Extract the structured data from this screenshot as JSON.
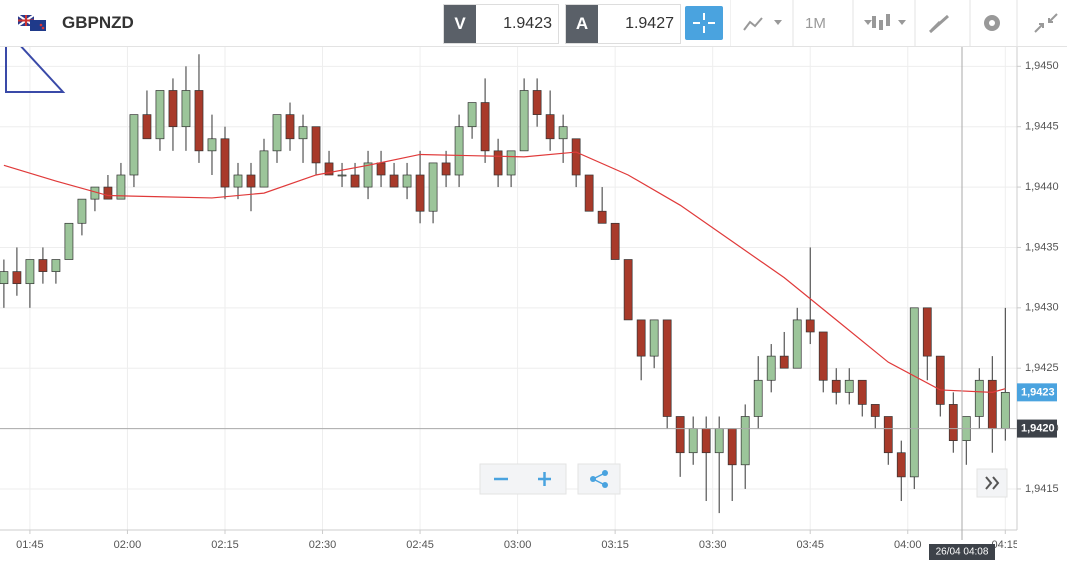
{
  "header": {
    "symbol": "GBPNZD",
    "bid_label": "V",
    "bid": "1.9423",
    "ask_label": "A",
    "ask": "1.9427",
    "timeframe": "1M"
  },
  "chart_data": {
    "type": "candlestick",
    "open": [
      1.9432,
      1.9433,
      1.9432,
      1.9434,
      1.9433,
      1.9434,
      1.9437,
      1.9439,
      1.944,
      1.9439,
      1.9441,
      1.9446,
      1.9444,
      1.9448,
      1.9445,
      1.9448,
      1.9443,
      1.9444,
      1.944,
      1.9441,
      1.944,
      1.9443,
      1.9446,
      1.9444,
      1.9445,
      1.9442,
      1.9441,
      1.9441,
      1.944,
      1.9442,
      1.9441,
      1.944,
      1.9441,
      1.9438,
      1.9442,
      1.9441,
      1.9445,
      1.9447,
      1.9443,
      1.9441,
      1.9443,
      1.9448,
      1.9446,
      1.9444,
      1.9444,
      1.9441,
      1.9438,
      1.9437,
      1.9434,
      1.9429,
      1.9426,
      1.9429,
      1.9421,
      1.9418,
      1.942,
      1.9418,
      1.942,
      1.9417,
      1.9421,
      1.9424,
      1.9426,
      1.9425,
      1.9429,
      1.9428,
      1.9424,
      1.9423,
      1.9424,
      1.9422,
      1.9421,
      1.9418,
      1.9416,
      1.943,
      1.9426,
      1.9422,
      1.9419,
      1.9421,
      1.9424,
      1.942
    ],
    "high": [
      1.9434,
      1.9435,
      1.9434,
      1.9435,
      1.9434,
      1.9437,
      1.9439,
      1.944,
      1.9441,
      1.9442,
      1.9446,
      1.9448,
      1.9448,
      1.9449,
      1.945,
      1.9451,
      1.9446,
      1.9445,
      1.9442,
      1.9442,
      1.9444,
      1.9446,
      1.9447,
      1.9446,
      1.9445,
      1.9443,
      1.9442,
      1.9442,
      1.9443,
      1.9443,
      1.9442,
      1.9442,
      1.9443,
      1.9442,
      1.9443,
      1.9446,
      1.9447,
      1.9449,
      1.9444,
      1.9443,
      1.9449,
      1.9449,
      1.9448,
      1.9446,
      1.9444,
      1.9441,
      1.944,
      1.9437,
      1.9434,
      1.9429,
      1.9429,
      1.9429,
      1.9421,
      1.9421,
      1.9421,
      1.9421,
      1.942,
      1.9422,
      1.9426,
      1.9427,
      1.9428,
      1.943,
      1.9435,
      1.9428,
      1.9425,
      1.9425,
      1.9424,
      1.9422,
      1.9421,
      1.9419,
      1.943,
      1.943,
      1.9426,
      1.9423,
      1.9421,
      1.9425,
      1.9426,
      1.943
    ],
    "low": [
      1.943,
      1.9431,
      1.943,
      1.9432,
      1.9432,
      1.9434,
      1.9436,
      1.9438,
      1.9439,
      1.9439,
      1.944,
      1.9444,
      1.9443,
      1.9443,
      1.9443,
      1.9442,
      1.9441,
      1.9439,
      1.9439,
      1.9438,
      1.944,
      1.9442,
      1.9443,
      1.9442,
      1.9441,
      1.9441,
      1.944,
      1.944,
      1.9439,
      1.944,
      1.944,
      1.9439,
      1.9437,
      1.9437,
      1.944,
      1.944,
      1.9444,
      1.9442,
      1.944,
      1.944,
      1.9443,
      1.9445,
      1.9443,
      1.9442,
      1.944,
      1.9438,
      1.9437,
      1.9434,
      1.9429,
      1.9424,
      1.9425,
      1.942,
      1.9416,
      1.9417,
      1.9414,
      1.9413,
      1.9414,
      1.9415,
      1.942,
      1.9423,
      1.9425,
      1.9425,
      1.9427,
      1.9423,
      1.9422,
      1.9422,
      1.9421,
      1.942,
      1.9417,
      1.9414,
      1.9415,
      1.9424,
      1.9421,
      1.9418,
      1.9417,
      1.942,
      1.9418,
      1.9419
    ],
    "close": [
      1.9433,
      1.9432,
      1.9434,
      1.9433,
      1.9434,
      1.9437,
      1.9439,
      1.944,
      1.9439,
      1.9441,
      1.9446,
      1.9444,
      1.9448,
      1.9445,
      1.9448,
      1.9443,
      1.9444,
      1.944,
      1.9441,
      1.944,
      1.9443,
      1.9446,
      1.9444,
      1.9445,
      1.9442,
      1.9441,
      1.9441,
      1.944,
      1.9442,
      1.9441,
      1.944,
      1.9441,
      1.9438,
      1.9442,
      1.9441,
      1.9445,
      1.9447,
      1.9443,
      1.9441,
      1.9443,
      1.9448,
      1.9446,
      1.9444,
      1.9445,
      1.9441,
      1.9438,
      1.9437,
      1.9434,
      1.9429,
      1.9426,
      1.9429,
      1.9421,
      1.9418,
      1.942,
      1.9418,
      1.942,
      1.9417,
      1.9421,
      1.9424,
      1.9426,
      1.9425,
      1.9429,
      1.9428,
      1.9424,
      1.9423,
      1.9424,
      1.9422,
      1.9421,
      1.9418,
      1.9416,
      1.943,
      1.9426,
      1.9422,
      1.9419,
      1.9421,
      1.9424,
      1.942,
      1.9423
    ],
    "up_color": "#9cc59a",
    "down_color": "#a83a2a",
    "ma": {
      "color": "#e03a3a",
      "x": [
        0,
        4,
        8,
        12,
        16,
        20,
        24,
        28,
        32,
        36,
        40,
        44,
        48,
        52,
        56,
        60,
        64,
        68,
        72,
        76,
        77
      ],
      "values": [
        1.94418,
        1.94405,
        1.94393,
        1.94392,
        1.94391,
        1.94395,
        1.9441,
        1.94418,
        1.94427,
        1.94426,
        1.94425,
        1.94429,
        1.9441,
        1.94385,
        1.94355,
        1.94325,
        1.9429,
        1.94255,
        1.94232,
        1.9423,
        1.94233
      ]
    },
    "xlim": [
      -0.3,
      77.9
    ],
    "xticks": [
      {
        "value": 2,
        "label": "01:45"
      },
      {
        "value": 9.5,
        "label": "02:00"
      },
      {
        "value": 17,
        "label": "02:15"
      },
      {
        "value": 24.5,
        "label": "02:30"
      },
      {
        "value": 32,
        "label": "02:45"
      },
      {
        "value": 39.5,
        "label": "03:00"
      },
      {
        "value": 47,
        "label": "03:15"
      },
      {
        "value": 54.5,
        "label": "03:30"
      },
      {
        "value": 62,
        "label": "03:45"
      },
      {
        "value": 69.5,
        "label": "04:00"
      },
      {
        "value": 77,
        "label": "04:15"
      }
    ],
    "ylim": [
      1.94116,
      1.94516
    ],
    "yticks": [
      {
        "value": 1.945,
        "label": "1,9450"
      },
      {
        "value": 1.9445,
        "label": "1,9445"
      },
      {
        "value": 1.944,
        "label": "1,9440"
      },
      {
        "value": 1.9435,
        "label": "1,9435"
      },
      {
        "value": 1.943,
        "label": "1,9430"
      },
      {
        "value": 1.9425,
        "label": "1,9425"
      },
      {
        "value": 1.942,
        "label": "1,9420"
      },
      {
        "value": 1.9415,
        "label": "1,9415"
      }
    ],
    "grid": true,
    "last_price": {
      "value": 1.9423,
      "label": "1,9423"
    },
    "crosshair_price": {
      "value": 1.942,
      "label": "1,9420"
    },
    "crosshair_time": "26/04 04:08"
  }
}
